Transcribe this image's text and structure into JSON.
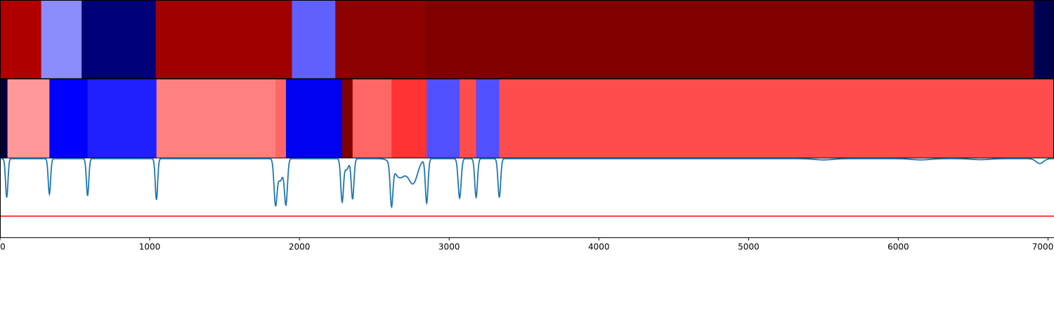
{
  "chart_data": {
    "type": "heatmap",
    "xlim": [
      0,
      7040
    ],
    "x_ticks": [
      0,
      1000,
      2000,
      3000,
      4000,
      5000,
      6000,
      7000
    ],
    "x_tick_labels": [
      "0",
      "1000",
      "2000",
      "3000",
      "4000",
      "5000",
      "6000",
      "7000"
    ],
    "strips": [
      {
        "segments": [
          {
            "start": 0,
            "end": 275,
            "color": "#b00000"
          },
          {
            "start": 275,
            "end": 545,
            "color": "#8c8cff"
          },
          {
            "start": 545,
            "end": 1040,
            "color": "#000078"
          },
          {
            "start": 1040,
            "end": 1950,
            "color": "#a00000"
          },
          {
            "start": 1950,
            "end": 2240,
            "color": "#6060ff"
          },
          {
            "start": 2240,
            "end": 2840,
            "color": "#8c0000"
          },
          {
            "start": 2840,
            "end": 6905,
            "color": "#800000"
          },
          {
            "start": 6905,
            "end": 7040,
            "color": "#000050"
          }
        ]
      },
      {
        "segments": [
          {
            "start": 0,
            "end": 50,
            "color": "#000040"
          },
          {
            "start": 50,
            "end": 330,
            "color": "#ff9999"
          },
          {
            "start": 330,
            "end": 585,
            "color": "#0000ff"
          },
          {
            "start": 585,
            "end": 1045,
            "color": "#2020ff"
          },
          {
            "start": 1045,
            "end": 1840,
            "color": "#ff8080"
          },
          {
            "start": 1840,
            "end": 1910,
            "color": "#ff6666"
          },
          {
            "start": 1910,
            "end": 2285,
            "color": "#0000f0"
          },
          {
            "start": 2285,
            "end": 2355,
            "color": "#800000"
          },
          {
            "start": 2355,
            "end": 2615,
            "color": "#ff6666"
          },
          {
            "start": 2615,
            "end": 2850,
            "color": "#ff3333"
          },
          {
            "start": 2850,
            "end": 3070,
            "color": "#5050ff"
          },
          {
            "start": 3070,
            "end": 3180,
            "color": "#ff4d4d"
          },
          {
            "start": 3180,
            "end": 3335,
            "color": "#5050ff"
          },
          {
            "start": 3335,
            "end": 7040,
            "color": "#ff4d4d"
          }
        ]
      }
    ],
    "line_series": {
      "color": "#1f77b4",
      "ylim": [
        0,
        1
      ],
      "baseline": 1.0,
      "dips": [
        {
          "x": 45,
          "depth": 0.49,
          "width": 8
        },
        {
          "x": 330,
          "depth": 0.45,
          "width": 8
        },
        {
          "x": 585,
          "depth": 0.47,
          "width": 8
        },
        {
          "x": 1045,
          "depth": 0.52,
          "width": 8
        },
        {
          "x": 1840,
          "depth": 0.54,
          "width": 10
        },
        {
          "x": 1910,
          "depth": 0.56,
          "width": 10
        },
        {
          "x": 1872,
          "depth": 0.28,
          "width": 18
        },
        {
          "x": 2285,
          "depth": 0.54,
          "width": 9
        },
        {
          "x": 2355,
          "depth": 0.51,
          "width": 9
        },
        {
          "x": 2315,
          "depth": 0.14,
          "width": 14
        },
        {
          "x": 2615,
          "depth": 0.52,
          "width": 9
        },
        {
          "x": 2670,
          "depth": 0.24,
          "width": 40
        },
        {
          "x": 2760,
          "depth": 0.3,
          "width": 30
        },
        {
          "x": 2850,
          "depth": 0.56,
          "width": 9
        },
        {
          "x": 3070,
          "depth": 0.5,
          "width": 10
        },
        {
          "x": 3180,
          "depth": 0.49,
          "width": 9
        },
        {
          "x": 3335,
          "depth": 0.49,
          "width": 9
        },
        {
          "x": 5500,
          "depth": 0.015,
          "width": 60
        },
        {
          "x": 6150,
          "depth": 0.015,
          "width": 60
        },
        {
          "x": 6550,
          "depth": 0.012,
          "width": 60
        },
        {
          "x": 6945,
          "depth": 0.06,
          "width": 25
        }
      ]
    },
    "threshold": {
      "y": 0.27,
      "color": "#ff0000"
    },
    "grid": false,
    "legend": "none"
  }
}
